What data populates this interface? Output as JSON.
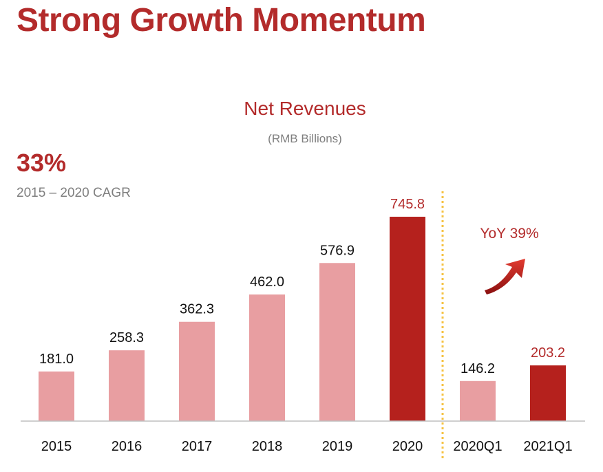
{
  "slide": {
    "title": "Strong Growth Momentum"
  },
  "cagr": {
    "value": "33%",
    "label": "2015 – 2020 CAGR"
  },
  "yoy": {
    "label": "YoY 39%"
  },
  "colors": {
    "accent": "#b32b2b",
    "bar_light": "#e89ea1",
    "bar_dark": "#b5211d",
    "divider": "#f5c242",
    "axis": "#bfbfbf",
    "muted_text": "#7f7f7f"
  },
  "chart_data": {
    "type": "bar",
    "title": "Net Revenues",
    "subtitle": "(RMB Billions)",
    "categories": [
      "2015",
      "2016",
      "2017",
      "2018",
      "2019",
      "2020",
      "2020Q1",
      "2021Q1"
    ],
    "values": [
      181.0,
      258.3,
      362.3,
      462.0,
      576.9,
      745.8,
      146.2,
      203.2
    ],
    "value_labels": [
      "181.0",
      "258.3",
      "362.3",
      "462.0",
      "576.9",
      "745.8",
      "146.2",
      "203.2"
    ],
    "highlighted": [
      "2020",
      "2021Q1"
    ],
    "ylim": [
      0,
      745.8
    ],
    "grid": false,
    "legend": "none",
    "divider_between": [
      "2020",
      "2020Q1"
    ]
  }
}
